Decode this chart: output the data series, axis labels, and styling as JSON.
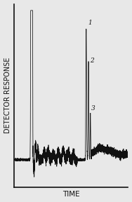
{
  "title": "",
  "xlabel": "TIME",
  "ylabel": "DETECTOR RESPONSE",
  "background_color": "#e8e8e8",
  "line_color": "#111111",
  "label_color": "#111111",
  "peak_labels": [
    "1",
    "2",
    "3"
  ],
  "figsize": [
    1.88,
    2.88
  ],
  "dpi": 100
}
